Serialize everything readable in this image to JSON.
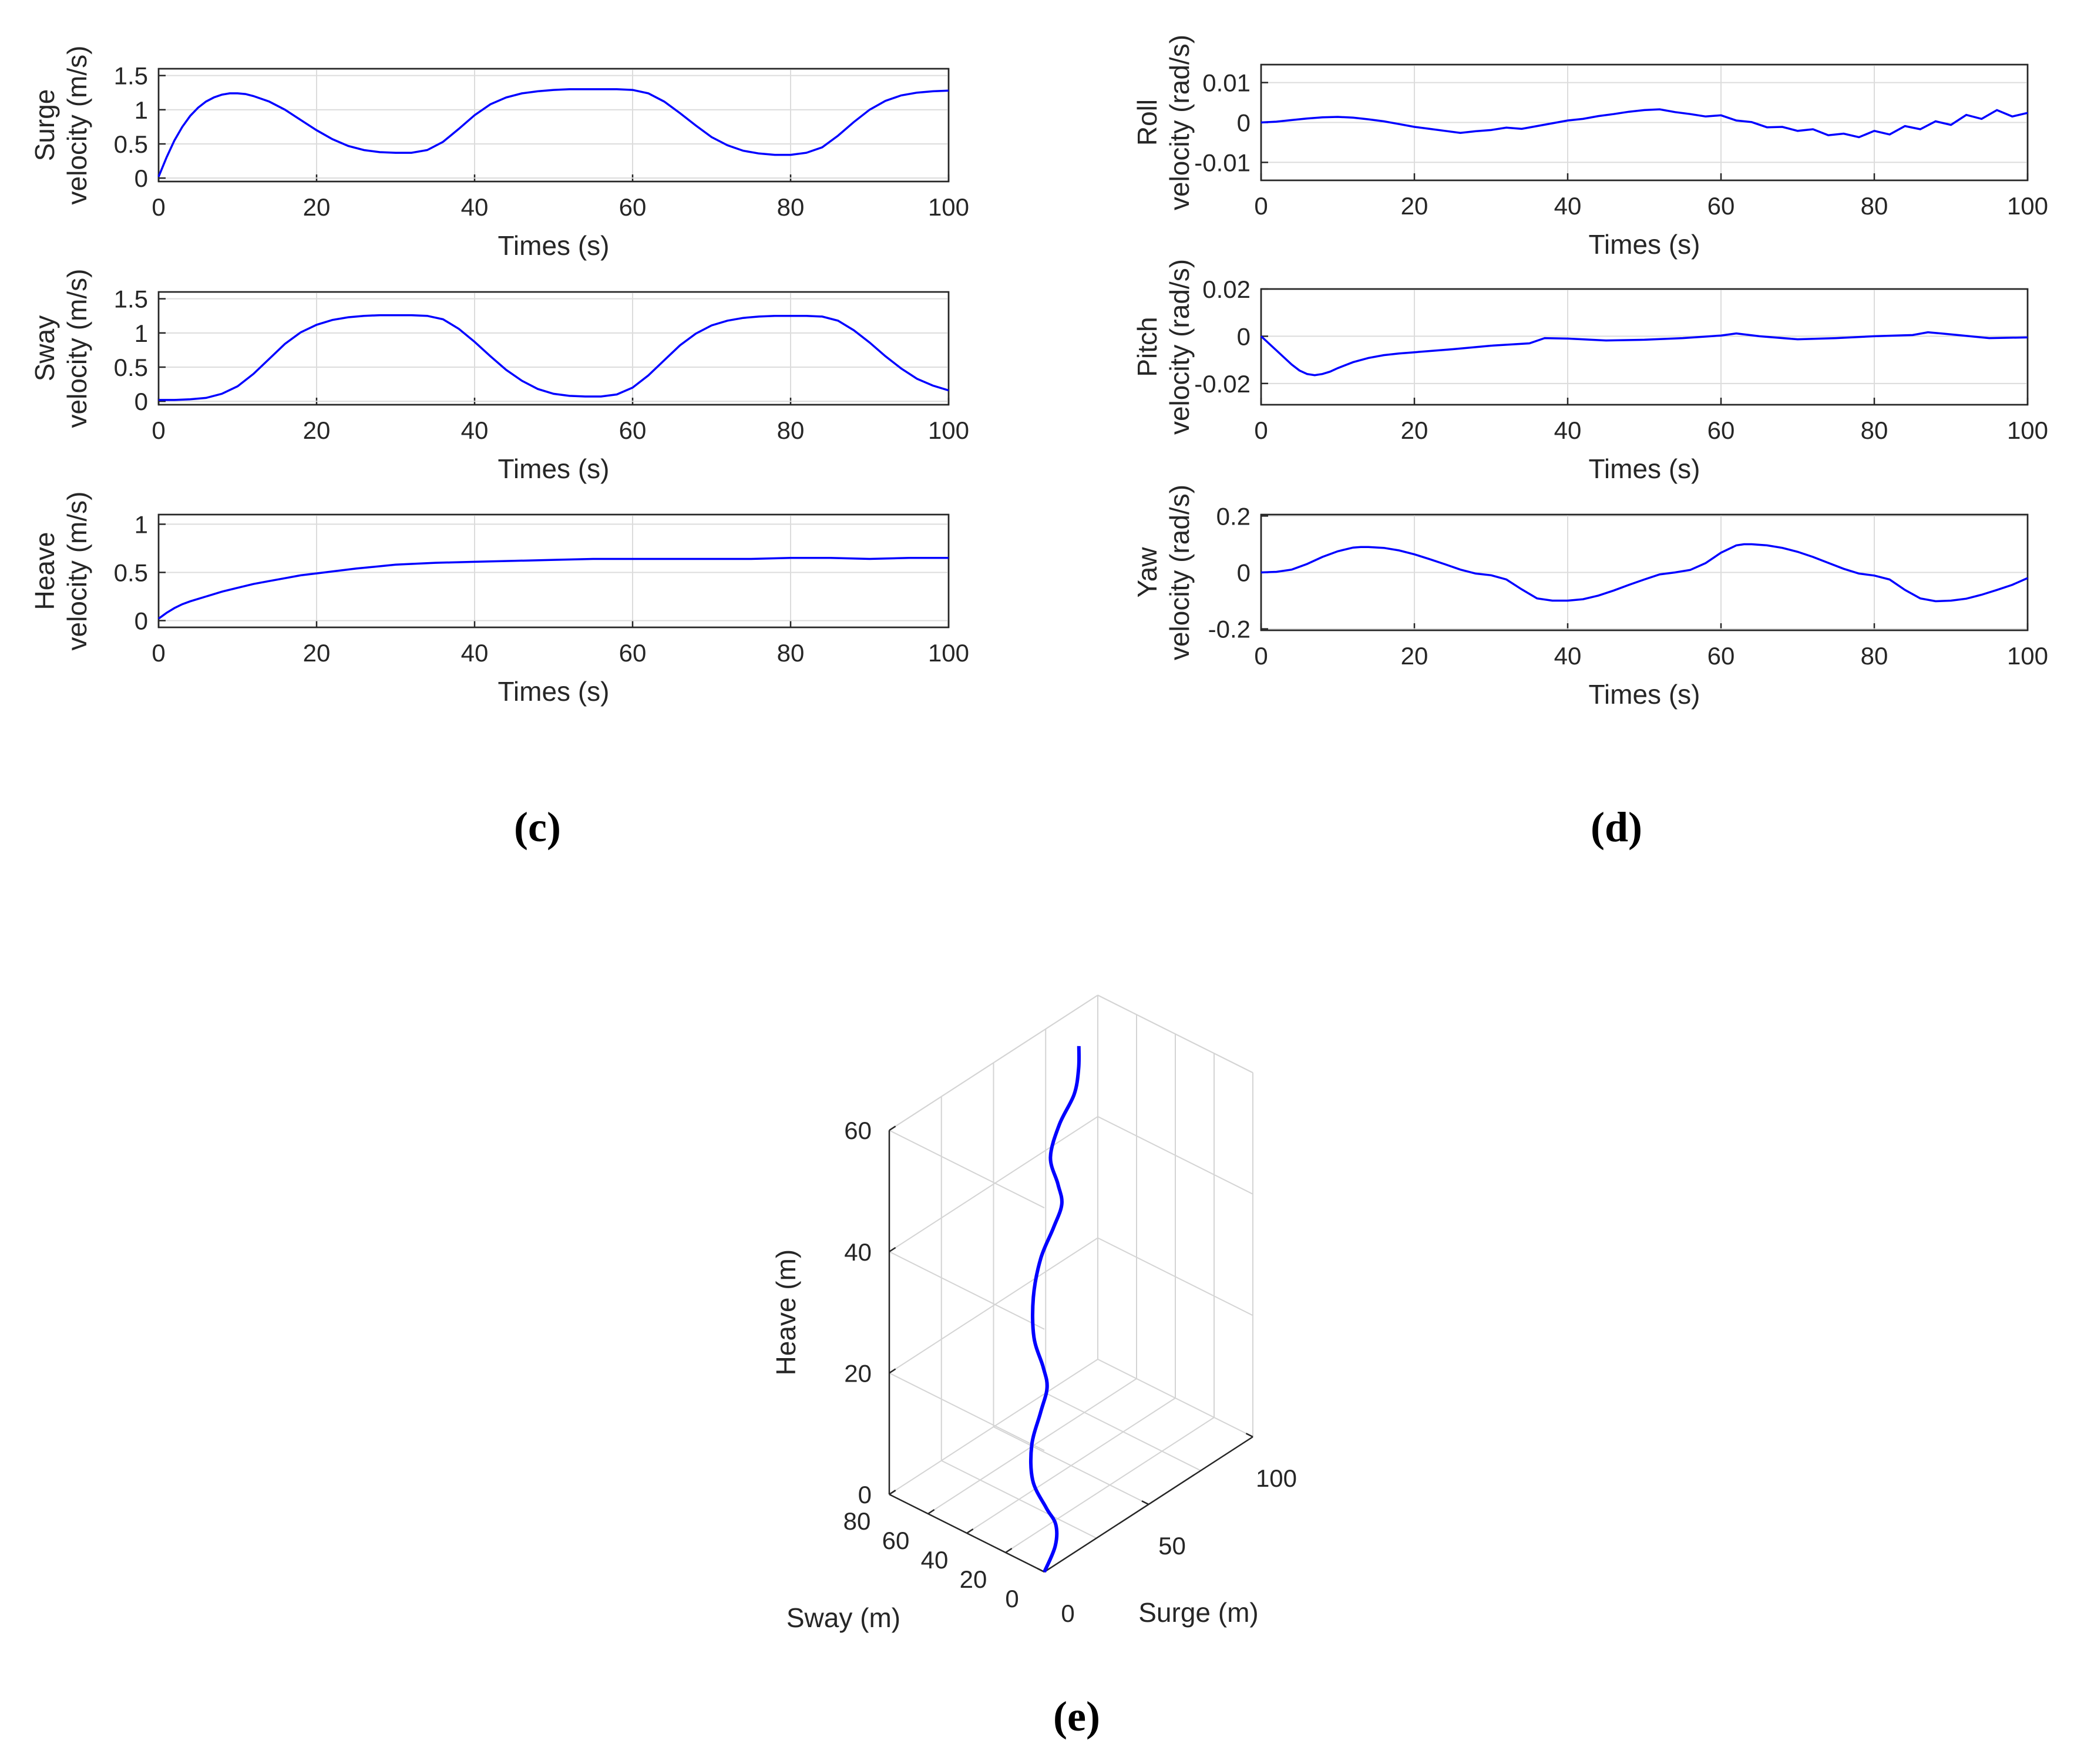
{
  "panel_labels": {
    "c": "(c)",
    "d": "(d)",
    "e": "(e)"
  },
  "chart_data": [
    {
      "id": "surge",
      "type": "line",
      "ylabel_top": "Surge",
      "ylabel_bottom": "velocity (m/s)",
      "xlabel": "Times (s)",
      "xlim": [
        0,
        100
      ],
      "ylim": [
        -0.05,
        1.6
      ],
      "xticks": [
        0,
        20,
        40,
        60,
        80,
        100
      ],
      "yticks": [
        0,
        0.5,
        1,
        1.5
      ],
      "ytick_labels": [
        "0",
        "0.5",
        "1",
        "1.5"
      ],
      "x": [
        0,
        1,
        2,
        3,
        4,
        5,
        6,
        7,
        8,
        9,
        10,
        11,
        12,
        14,
        16,
        18,
        20,
        22,
        24,
        26,
        28,
        30,
        32,
        34,
        36,
        38,
        40,
        42,
        44,
        46,
        48,
        50,
        52,
        54,
        56,
        58,
        60,
        62,
        64,
        66,
        68,
        70,
        72,
        74,
        76,
        78,
        80,
        82,
        84,
        86,
        88,
        90,
        92,
        94,
        96,
        98,
        100
      ],
      "y": [
        0.02,
        0.3,
        0.55,
        0.75,
        0.91,
        1.03,
        1.12,
        1.18,
        1.22,
        1.24,
        1.24,
        1.23,
        1.2,
        1.12,
        1.0,
        0.85,
        0.7,
        0.57,
        0.47,
        0.41,
        0.38,
        0.37,
        0.37,
        0.41,
        0.53,
        0.72,
        0.92,
        1.08,
        1.18,
        1.24,
        1.27,
        1.29,
        1.3,
        1.3,
        1.3,
        1.3,
        1.29,
        1.24,
        1.12,
        0.95,
        0.77,
        0.6,
        0.48,
        0.4,
        0.36,
        0.34,
        0.34,
        0.37,
        0.45,
        0.62,
        0.82,
        1.0,
        1.13,
        1.21,
        1.25,
        1.27,
        1.28
      ]
    },
    {
      "id": "sway",
      "type": "line",
      "ylabel_top": "Sway",
      "ylabel_bottom": "velocity (m/s)",
      "xlabel": "Times (s)",
      "xlim": [
        0,
        100
      ],
      "ylim": [
        -0.05,
        1.6
      ],
      "xticks": [
        0,
        20,
        40,
        60,
        80,
        100
      ],
      "yticks": [
        0,
        0.5,
        1,
        1.5
      ],
      "ytick_labels": [
        "0",
        "0.5",
        "1",
        "1.5"
      ],
      "x": [
        0,
        2,
        4,
        6,
        8,
        10,
        12,
        14,
        16,
        18,
        20,
        22,
        24,
        26,
        28,
        30,
        32,
        34,
        36,
        38,
        40,
        42,
        44,
        46,
        48,
        50,
        52,
        54,
        56,
        58,
        60,
        62,
        64,
        66,
        68,
        70,
        72,
        74,
        76,
        78,
        80,
        82,
        84,
        86,
        88,
        90,
        92,
        94,
        96,
        98,
        100
      ],
      "y": [
        0.02,
        0.02,
        0.03,
        0.05,
        0.11,
        0.22,
        0.4,
        0.62,
        0.84,
        1.01,
        1.12,
        1.19,
        1.23,
        1.25,
        1.26,
        1.26,
        1.26,
        1.25,
        1.2,
        1.06,
        0.87,
        0.66,
        0.46,
        0.3,
        0.18,
        0.11,
        0.08,
        0.07,
        0.07,
        0.1,
        0.2,
        0.38,
        0.6,
        0.82,
        0.99,
        1.11,
        1.18,
        1.22,
        1.24,
        1.25,
        1.25,
        1.25,
        1.24,
        1.18,
        1.04,
        0.86,
        0.66,
        0.48,
        0.33,
        0.23,
        0.16
      ]
    },
    {
      "id": "heave",
      "type": "line",
      "ylabel_top": "Heave",
      "ylabel_bottom": "velocity (m/s)",
      "xlabel": "Times (s)",
      "xlim": [
        0,
        100
      ],
      "ylim": [
        -0.07,
        1.1
      ],
      "xticks": [
        0,
        20,
        40,
        60,
        80,
        100
      ],
      "yticks": [
        0,
        0.5,
        1
      ],
      "ytick_labels": [
        "0",
        "0.5",
        "1"
      ],
      "x": [
        0,
        1,
        2,
        3,
        4,
        6,
        8,
        10,
        12,
        14,
        16,
        18,
        20,
        25,
        30,
        35,
        40,
        45,
        50,
        55,
        60,
        65,
        70,
        75,
        80,
        85,
        90,
        95,
        100
      ],
      "y": [
        0.02,
        0.08,
        0.13,
        0.17,
        0.2,
        0.25,
        0.3,
        0.34,
        0.38,
        0.41,
        0.44,
        0.47,
        0.49,
        0.54,
        0.58,
        0.6,
        0.61,
        0.62,
        0.63,
        0.64,
        0.64,
        0.64,
        0.64,
        0.64,
        0.65,
        0.65,
        0.64,
        0.65,
        0.65
      ]
    },
    {
      "id": "roll",
      "type": "line",
      "ylabel_top": "Roll",
      "ylabel_bottom": "velocity (rad/s)",
      "xlabel": "Times (s)",
      "xlim": [
        0,
        100
      ],
      "ylim": [
        -0.0145,
        0.0145
      ],
      "xticks": [
        0,
        20,
        40,
        60,
        80,
        100
      ],
      "yticks": [
        0.01,
        0,
        -0.01
      ],
      "ytick_labels": [
        "0.01",
        "0",
        "-0.01"
      ],
      "x": [
        0,
        2,
        4,
        6,
        8,
        10,
        12,
        14,
        16,
        18,
        20,
        22,
        24,
        26,
        28,
        30,
        32,
        34,
        36,
        38,
        40,
        42,
        44,
        46,
        48,
        50,
        52,
        54,
        56,
        58,
        60,
        62,
        64,
        66,
        68,
        70,
        72,
        74,
        76,
        78,
        80,
        82,
        84,
        86,
        88,
        90,
        92,
        94,
        96,
        98,
        100
      ],
      "y": [
        0.0,
        0.0002,
        0.0006,
        0.001,
        0.0013,
        0.0014,
        0.0012,
        0.0008,
        0.0003,
        -0.0004,
        -0.0011,
        -0.0016,
        -0.0021,
        -0.0026,
        -0.0022,
        -0.0019,
        -0.0013,
        -0.0016,
        -0.0009,
        -0.0002,
        0.0005,
        0.0009,
        0.0016,
        0.0021,
        0.0027,
        0.0031,
        0.0033,
        0.0026,
        0.0021,
        0.0015,
        0.0018,
        0.0005,
        0.0001,
        -0.0012,
        -0.0011,
        -0.0021,
        -0.0017,
        -0.0032,
        -0.0028,
        -0.0037,
        -0.0021,
        -0.003,
        -0.0009,
        -0.0017,
        0.0003,
        -0.0006,
        0.0019,
        0.0009,
        0.0031,
        0.0015,
        0.0024
      ]
    },
    {
      "id": "pitch",
      "type": "line",
      "ylabel_top": "Pitch",
      "ylabel_bottom": "velocity (rad/s)",
      "xlabel": "Times (s)",
      "xlim": [
        0,
        100
      ],
      "ylim": [
        -0.029,
        0.02
      ],
      "xticks": [
        0,
        20,
        40,
        60,
        80,
        100
      ],
      "yticks": [
        0.02,
        0,
        -0.02
      ],
      "ytick_labels": [
        "0.02",
        "0",
        "-0.02"
      ],
      "x": [
        0,
        1,
        2,
        3,
        4,
        5,
        6,
        7,
        8,
        9,
        10,
        12,
        14,
        16,
        18,
        20,
        25,
        30,
        35,
        37,
        40,
        45,
        50,
        55,
        60,
        62,
        65,
        70,
        75,
        80,
        85,
        87,
        90,
        95,
        100
      ],
      "y": [
        0.0,
        -0.003,
        -0.006,
        -0.009,
        -0.012,
        -0.0145,
        -0.016,
        -0.0165,
        -0.016,
        -0.015,
        -0.0135,
        -0.011,
        -0.0092,
        -0.008,
        -0.0073,
        -0.0068,
        -0.0055,
        -0.004,
        -0.003,
        -0.0008,
        -0.001,
        -0.0018,
        -0.0015,
        -0.0008,
        0.0003,
        0.0012,
        0.0,
        -0.0013,
        -0.0008,
        0.0,
        0.0005,
        0.0017,
        0.0008,
        -0.0008,
        -0.0005
      ]
    },
    {
      "id": "yaw",
      "type": "line",
      "ylabel_top": "Yaw",
      "ylabel_bottom": "velocity (rad/s)",
      "xlabel": "Times (s)",
      "xlim": [
        0,
        100
      ],
      "ylim": [
        -0.205,
        0.205
      ],
      "xticks": [
        0,
        20,
        40,
        60,
        80,
        100
      ],
      "yticks": [
        0.2,
        0,
        -0.2
      ],
      "ytick_labels": [
        "0.2",
        "0",
        "-0.2"
      ],
      "x": [
        0,
        2,
        4,
        6,
        8,
        10,
        12,
        13,
        14,
        16,
        18,
        20,
        22,
        24,
        26,
        28,
        30,
        32,
        34,
        36,
        38,
        40,
        42,
        44,
        46,
        48,
        50,
        52,
        54,
        56,
        58,
        60,
        62,
        63,
        64,
        66,
        68,
        70,
        72,
        74,
        76,
        78,
        80,
        82,
        84,
        86,
        88,
        90,
        92,
        94,
        96,
        98,
        100
      ],
      "y": [
        0.0,
        0.002,
        0.01,
        0.03,
        0.055,
        0.075,
        0.088,
        0.09,
        0.09,
        0.087,
        0.078,
        0.064,
        0.047,
        0.029,
        0.01,
        -0.004,
        -0.01,
        -0.025,
        -0.06,
        -0.092,
        -0.1,
        -0.1,
        -0.095,
        -0.082,
        -0.064,
        -0.044,
        -0.025,
        -0.007,
        0.0,
        0.009,
        0.033,
        0.07,
        0.096,
        0.1,
        0.1,
        0.096,
        0.087,
        0.073,
        0.055,
        0.034,
        0.013,
        -0.004,
        -0.011,
        -0.025,
        -0.062,
        -0.092,
        -0.102,
        -0.1,
        -0.093,
        -0.079,
        -0.062,
        -0.044,
        -0.02
      ]
    },
    {
      "id": "trajectory3d",
      "type": "line3d",
      "xlabel": "Surge (m)",
      "ylabel": "Sway (m)",
      "zlabel": "Heave (m)",
      "surge_ticks": [
        0,
        50,
        100
      ],
      "surge_tick_labels": [
        "0",
        "50",
        "100"
      ],
      "sway_ticks": [
        0,
        20,
        40,
        60,
        80
      ],
      "sway_tick_labels": [
        "0",
        "20",
        "40",
        "60",
        "80"
      ],
      "heave_ticks": [
        0,
        20,
        40,
        60
      ],
      "heave_tick_labels": [
        "0",
        "20",
        "40",
        "60"
      ],
      "surge": [
        0,
        8,
        12,
        12,
        13,
        20,
        28,
        32,
        32,
        35,
        44,
        54,
        62,
        66,
        66,
        68,
        76,
        84,
        88,
        90
      ],
      "sway": [
        0,
        3,
        7,
        12,
        20,
        28,
        32,
        33,
        35,
        43,
        53,
        60,
        62,
        62,
        64,
        70,
        74,
        75,
        77,
        79
      ],
      "heave": [
        0,
        2,
        4,
        6,
        9,
        12,
        15,
        18,
        21,
        24,
        27,
        30,
        33,
        36,
        39,
        42,
        45,
        48,
        51,
        54
      ]
    }
  ]
}
